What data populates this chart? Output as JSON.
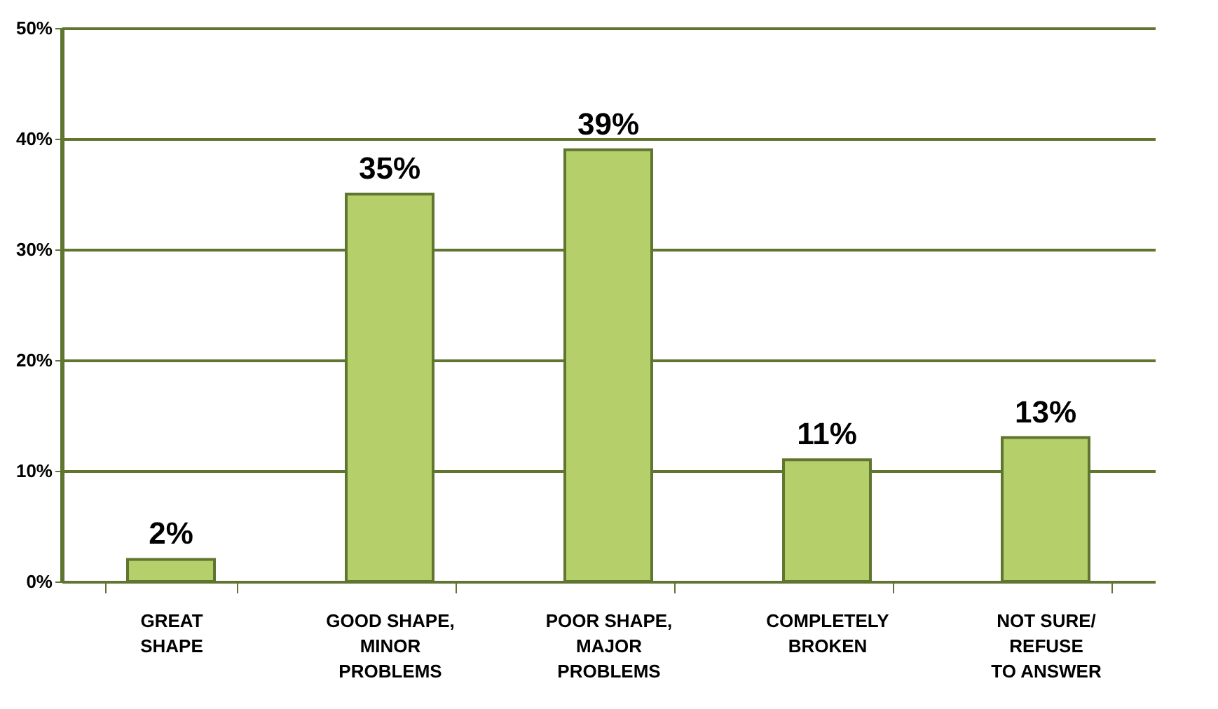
{
  "chart_data": {
    "type": "bar",
    "categories": [
      "GREAT\nSHAPE",
      "GOOD SHAPE,\nMINOR\nPROBLEMS",
      "POOR SHAPE,\nMAJOR\nPROBLEMS",
      "COMPLETELY\nBROKEN",
      "NOT SURE/\nREFUSE\nTO ANSWER"
    ],
    "values": [
      2,
      35,
      39,
      11,
      13
    ],
    "value_labels": [
      "2%",
      "35%",
      "39%",
      "11%",
      "13%"
    ],
    "color": "#b5cf6b",
    "ylim": [
      0,
      50
    ],
    "yticks": [
      {
        "value": 0,
        "label": "0%"
      },
      {
        "value": 10,
        "label": "10%"
      },
      {
        "value": 20,
        "label": "20%"
      },
      {
        "value": 30,
        "label": "30%"
      },
      {
        "value": 40,
        "label": "40%"
      },
      {
        "value": 50,
        "label": "50%"
      }
    ],
    "grid": "y"
  }
}
